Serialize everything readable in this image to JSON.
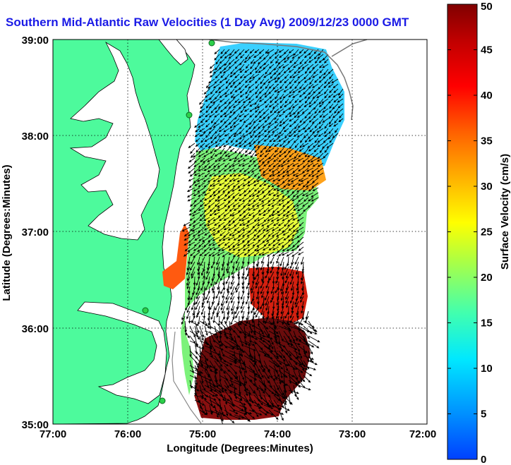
{
  "title": "Southern Mid-Atlantic Raw Velocities (1 Day Avg) 2009/12/23 0000 GMT",
  "xlabel": "Longitude (Degrees:Minutes)",
  "ylabel": "Latitude (Degrees:Minutes)",
  "xticks": [
    "77:00",
    "76:00",
    "75:00",
    "74:00",
    "73:00",
    "72:00"
  ],
  "yticks": [
    "39:00",
    "38:00",
    "37:00",
    "36:00",
    "35:00"
  ],
  "colorbar": {
    "label": "Surface Velocity (cm/s)",
    "ticks": [
      "0",
      "5",
      "10",
      "15",
      "20",
      "25",
      "30",
      "35",
      "40",
      "45",
      "50"
    ],
    "range": [
      0,
      50
    ]
  },
  "colors": {
    "land": "#4dfa9c",
    "title": "#1a1ae6"
  }
}
